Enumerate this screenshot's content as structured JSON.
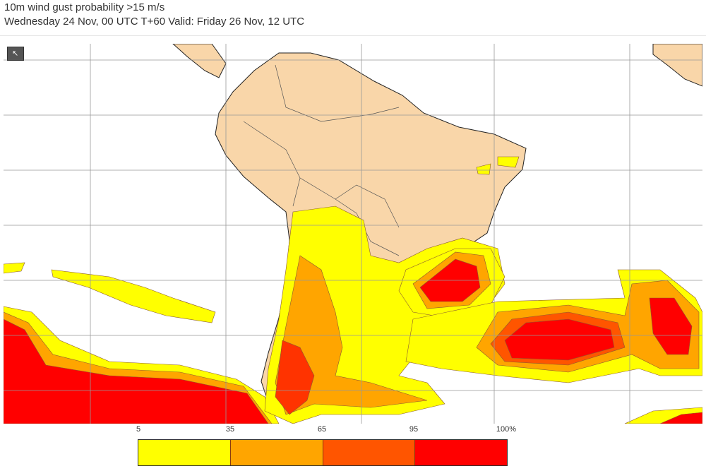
{
  "header": {
    "title": "10m wind gust probability >15 m/s",
    "subtitle": "Wednesday 24 Nov, 00 UTC T+60 Valid: Friday 26 Nov, 12 UTC"
  },
  "toolbar": {
    "select_tool_icon": "cursor-select-icon"
  },
  "legend": {
    "ticks": [
      "5",
      "35",
      "65",
      "95",
      "100%"
    ],
    "colors": [
      "#ffff00",
      "#ffa500",
      "#ff5500",
      "#ff0000"
    ]
  },
  "map_colors": {
    "land": "#f9d6a9",
    "ocean": "#ffffff",
    "grid": "#999999",
    "border": "#333333"
  }
}
